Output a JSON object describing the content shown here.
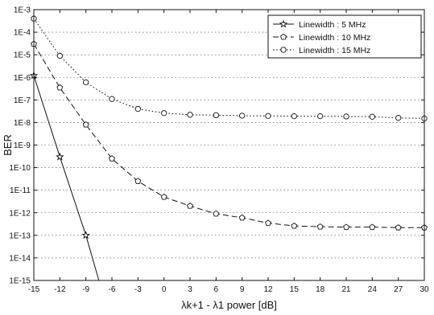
{
  "chart_data": {
    "type": "line",
    "xlabel": "λk+1 - λ1 power [dB]",
    "ylabel": "BER",
    "xlim": [
      -15,
      30
    ],
    "ylim_exponent": [
      -15,
      -3
    ],
    "y_scale": "log",
    "x_ticks": [
      "-15",
      "-12",
      "-9",
      "-6",
      "-3",
      "0",
      "3",
      "6",
      "9",
      "12",
      "15",
      "18",
      "21",
      "24",
      "27",
      "30"
    ],
    "y_ticks": [
      "1E-3",
      "1E-4",
      "1E-5",
      "1E-6",
      "1E-7",
      "1E-8",
      "1E-9",
      "1E-10",
      "1E-11",
      "1E-12",
      "1E-13",
      "1E-14",
      "1E-15"
    ],
    "grid": "dotted",
    "legend_position": "top-right",
    "series": [
      {
        "name": "Linewidth : 5 MHz",
        "marker": "star",
        "line": "solid",
        "x": [
          -15,
          -12,
          -9,
          -7.5
        ],
        "y": [
          1.2e-06,
          3e-10,
          1e-13,
          1e-15
        ]
      },
      {
        "name": "Linewidth : 10 MHz",
        "marker": "pentagon",
        "line": "dashed",
        "x": [
          -15,
          -12,
          -9,
          -6,
          -3,
          0,
          3,
          6,
          9,
          12,
          15,
          18,
          21,
          24,
          27,
          30
        ],
        "y": [
          3e-05,
          3.5e-07,
          8e-09,
          2.5e-10,
          2.5e-11,
          5e-12,
          2e-12,
          9e-13,
          6e-13,
          3.5e-13,
          2.6e-13,
          2.4e-13,
          2.3e-13,
          2.3e-13,
          2.2e-13,
          2.2e-13
        ]
      },
      {
        "name": "Linewidth : 15 MHz",
        "marker": "circle",
        "line": "dotted",
        "x": [
          -15,
          -12,
          -9,
          -6,
          -3,
          0,
          3,
          6,
          9,
          12,
          15,
          18,
          21,
          24,
          27,
          30
        ],
        "y": [
          0.0004,
          9e-06,
          6e-07,
          1.1e-07,
          4e-08,
          2.6e-08,
          2.2e-08,
          2.1e-08,
          2e-08,
          1.95e-08,
          1.9e-08,
          1.9e-08,
          1.85e-08,
          1.8e-08,
          1.6e-08,
          1.5e-08
        ]
      }
    ]
  }
}
